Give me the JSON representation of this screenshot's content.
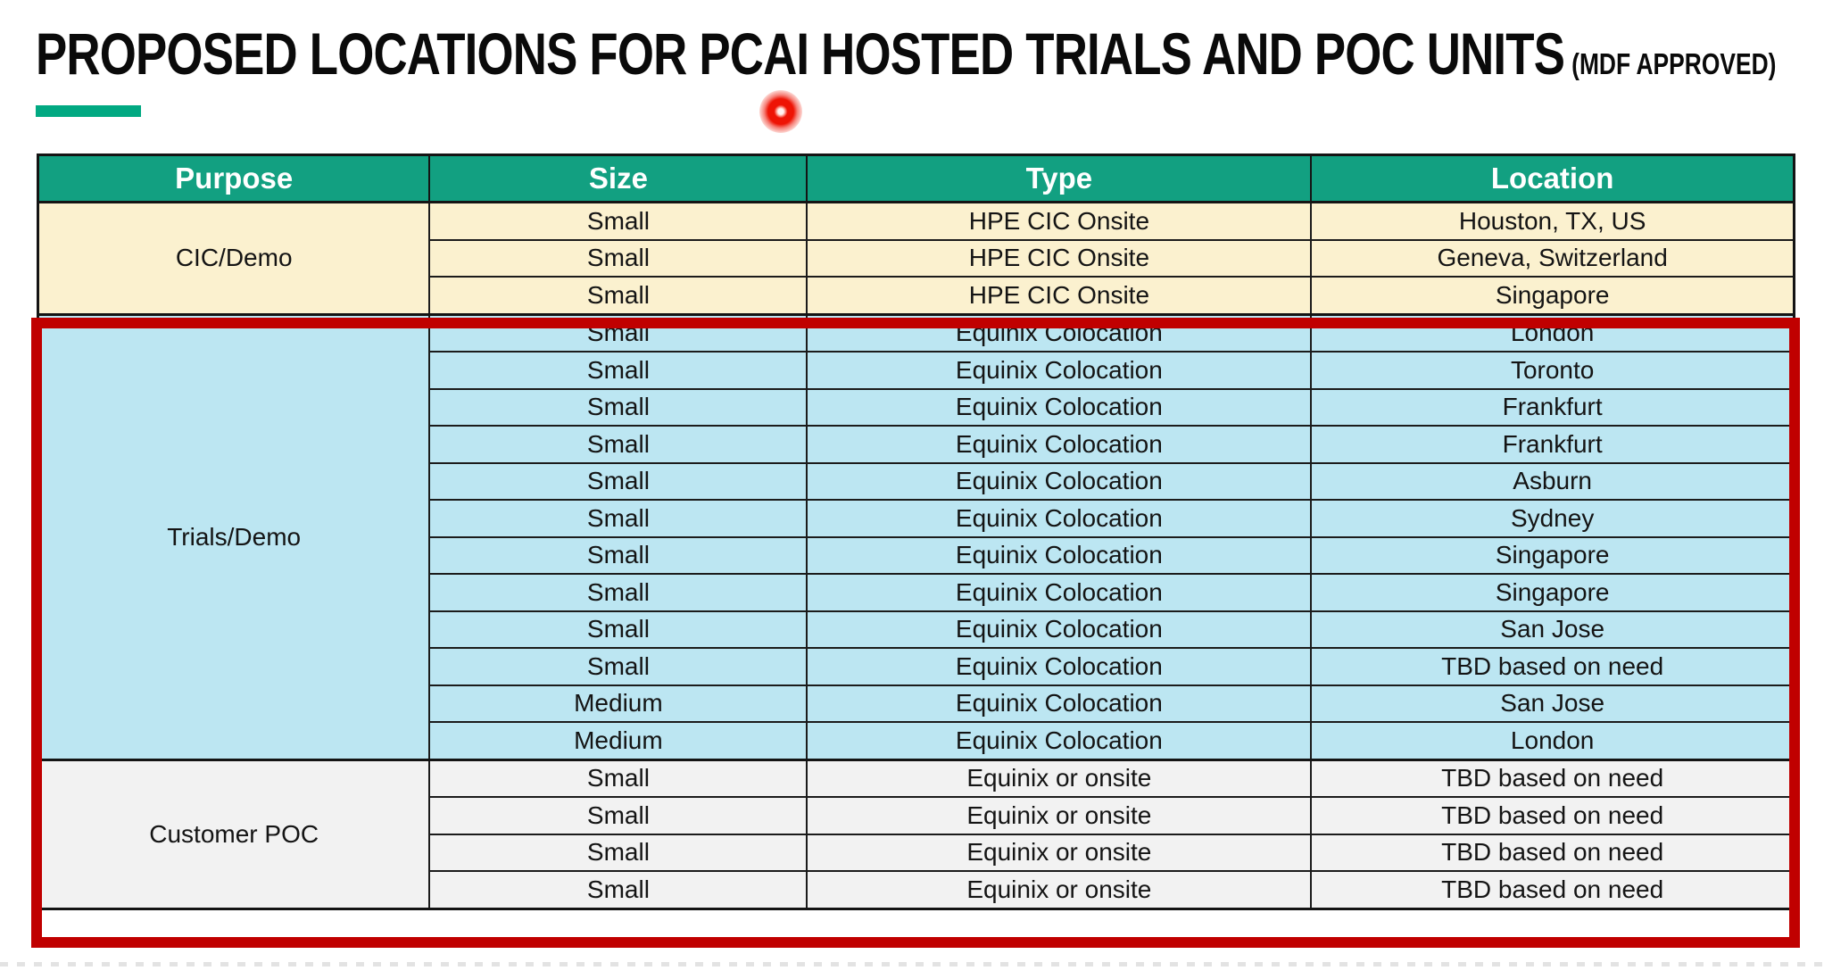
{
  "page": {
    "title": "PROPOSED LOCATIONS FOR PCAI HOSTED TRIALS AND POC UNITS",
    "title_suffix": "(MDF APPROVED)"
  },
  "colors": {
    "accent": "#01A982",
    "header_bg": "#12A081",
    "cic_bg": "#FBF1CF",
    "trials_bg": "#BCE6F2",
    "poc_bg": "#F2F2F2",
    "highlight_border": "#C00000",
    "laser_dot": "#EE1405"
  },
  "table": {
    "columns": [
      "Purpose",
      "Size",
      "Type",
      "Location"
    ],
    "sections": [
      {
        "id": "cic",
        "purpose": "CIC/Demo",
        "highlighted": false,
        "rows": [
          {
            "size": "Small",
            "type": "HPE CIC Onsite",
            "location": "Houston, TX, US"
          },
          {
            "size": "Small",
            "type": "HPE CIC Onsite",
            "location": "Geneva, Switzerland"
          },
          {
            "size": "Small",
            "type": "HPE CIC Onsite",
            "location": "Singapore"
          }
        ]
      },
      {
        "id": "trials",
        "purpose": "Trials/Demo",
        "highlighted": true,
        "rows": [
          {
            "size": "Small",
            "type": "Equinix Colocation",
            "location": "London"
          },
          {
            "size": "Small",
            "type": "Equinix Colocation",
            "location": "Toronto"
          },
          {
            "size": "Small",
            "type": "Equinix Colocation",
            "location": "Frankfurt"
          },
          {
            "size": "Small",
            "type": "Equinix Colocation",
            "location": "Frankfurt"
          },
          {
            "size": "Small",
            "type": "Equinix Colocation",
            "location": "Asburn"
          },
          {
            "size": "Small",
            "type": "Equinix Colocation",
            "location": "Sydney"
          },
          {
            "size": "Small",
            "type": "Equinix Colocation",
            "location": "Singapore"
          },
          {
            "size": "Small",
            "type": "Equinix Colocation",
            "location": "Singapore"
          },
          {
            "size": "Small",
            "type": "Equinix Colocation",
            "location": "San Jose"
          },
          {
            "size": "Small",
            "type": "Equinix Colocation",
            "location": "TBD based on need"
          },
          {
            "size": "Medium",
            "type": "Equinix Colocation",
            "location": "San Jose"
          },
          {
            "size": "Medium",
            "type": "Equinix Colocation",
            "location": "London"
          }
        ]
      },
      {
        "id": "poc",
        "purpose": "Customer POC",
        "highlighted": true,
        "rows": [
          {
            "size": "Small",
            "type": "Equinix or onsite",
            "location": "TBD based on need"
          },
          {
            "size": "Small",
            "type": "Equinix or onsite",
            "location": "TBD based on need"
          },
          {
            "size": "Small",
            "type": "Equinix or onsite",
            "location": "TBD based on need"
          },
          {
            "size": "Small",
            "type": "Equinix or onsite",
            "location": "TBD based on need"
          }
        ]
      }
    ]
  }
}
